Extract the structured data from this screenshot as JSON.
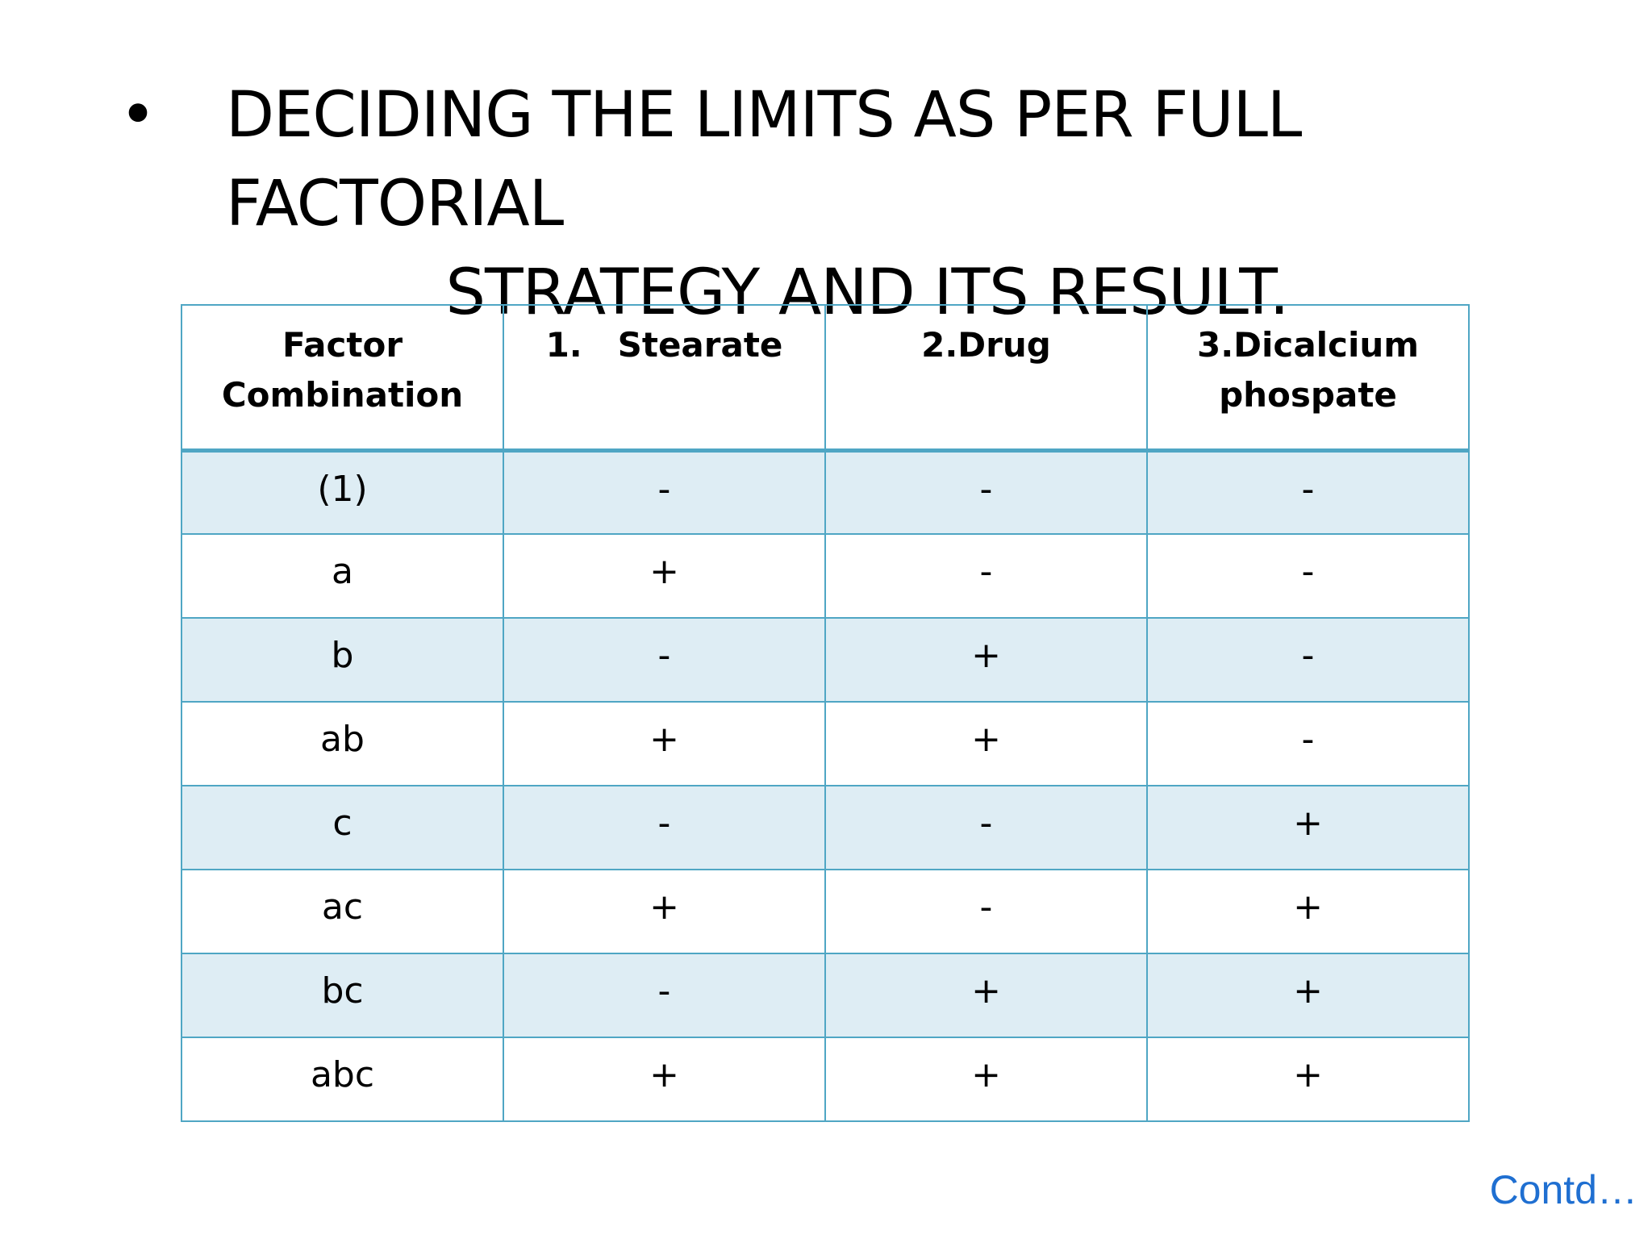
{
  "slide": {
    "bullet": "•",
    "title_line1": "DECIDING THE LIMITS AS PER FULL FACTORIAL",
    "title_line2": "STRATEGY AND ITS RESULT."
  },
  "table": {
    "headers": [
      [
        "Factor",
        "Combination"
      ],
      [
        "1.   Stearate",
        ""
      ],
      [
        "2.Drug",
        ""
      ],
      [
        "3.Dicalcium",
        "phospate"
      ]
    ],
    "rows": [
      [
        "(1)",
        "-",
        "-",
        "-"
      ],
      [
        "a",
        "+",
        "-",
        "-"
      ],
      [
        "b",
        "-",
        "+",
        "-"
      ],
      [
        "ab",
        "+",
        "+",
        "-"
      ],
      [
        "c",
        "-",
        "-",
        "+"
      ],
      [
        "ac",
        "+",
        "-",
        "+"
      ],
      [
        "bc",
        "-",
        "+",
        "+"
      ],
      [
        "abc",
        "+",
        "+",
        "+"
      ]
    ]
  },
  "footer": {
    "contd": "Contd…"
  },
  "colors": {
    "table_border": "#4fa6c4",
    "row_band": "#deedf4",
    "contd_text": "#1f6fd1"
  }
}
